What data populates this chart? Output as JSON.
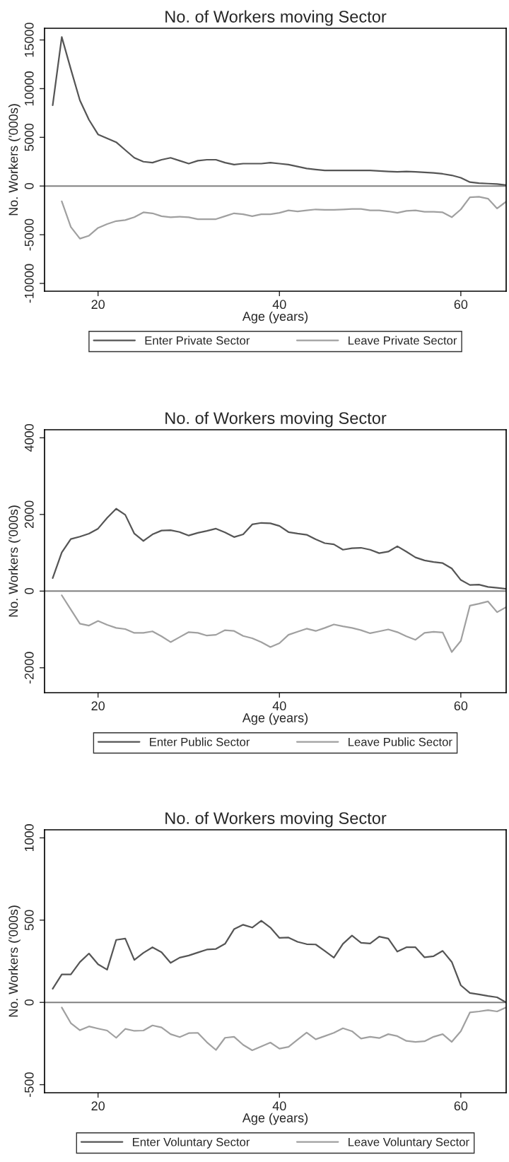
{
  "chart_data": [
    {
      "type": "line",
      "title": "No. of Workers moving Sector",
      "xlabel": "Age (years)",
      "ylabel": "No. Workers ('000s)",
      "xlim": [
        14.1,
        65
      ],
      "xticks": [
        20,
        40,
        60
      ],
      "ylim": [
        -10800,
        16200
      ],
      "yticks": [
        -10000,
        -5000,
        0,
        5000,
        10000,
        15000
      ],
      "grid": false,
      "legend": "bottom",
      "marker": "none",
      "line_style": "solid",
      "ref_lines": [
        {
          "axis": "y",
          "value": 0,
          "color": "#808080"
        }
      ],
      "series": [
        {
          "name": "Enter Private Sector",
          "color": "#555555",
          "x": [
            15,
            16,
            17,
            18,
            19,
            20,
            21,
            22,
            23,
            24,
            25,
            26,
            27,
            28,
            29,
            30,
            31,
            32,
            33,
            34,
            35,
            36,
            37,
            38,
            39,
            40,
            41,
            42,
            43,
            44,
            45,
            46,
            47,
            48,
            49,
            50,
            51,
            52,
            53,
            54,
            55,
            56,
            57,
            58,
            59,
            60,
            61,
            62,
            63,
            64,
            65
          ],
          "values": [
            8300,
            15300,
            12000,
            8800,
            6800,
            5300,
            4900,
            4500,
            3700,
            2900,
            2500,
            2400,
            2700,
            2900,
            2600,
            2300,
            2600,
            2700,
            2700,
            2400,
            2200,
            2300,
            2300,
            2300,
            2400,
            2300,
            2200,
            2000,
            1800,
            1700,
            1600,
            1600,
            1600,
            1600,
            1600,
            1600,
            1550,
            1500,
            1450,
            1500,
            1450,
            1400,
            1350,
            1250,
            1100,
            850,
            400,
            300,
            250,
            200,
            100
          ]
        },
        {
          "name": "Leave Private Sector",
          "color": "#a0a0a0",
          "x": [
            16,
            17,
            18,
            19,
            20,
            21,
            22,
            23,
            24,
            25,
            26,
            27,
            28,
            29,
            30,
            31,
            32,
            33,
            34,
            35,
            36,
            37,
            38,
            39,
            40,
            41,
            42,
            43,
            44,
            45,
            46,
            47,
            48,
            49,
            50,
            51,
            52,
            53,
            54,
            55,
            56,
            57,
            58,
            59,
            60,
            61,
            62,
            63,
            64,
            65
          ],
          "values": [
            -1570,
            -4200,
            -5400,
            -5100,
            -4300,
            -3900,
            -3600,
            -3500,
            -3200,
            -2700,
            -2800,
            -3100,
            -3200,
            -3150,
            -3200,
            -3400,
            -3400,
            -3400,
            -3100,
            -2800,
            -2900,
            -3100,
            -2900,
            -2900,
            -2750,
            -2500,
            -2600,
            -2500,
            -2400,
            -2450,
            -2450,
            -2400,
            -2350,
            -2350,
            -2500,
            -2500,
            -2600,
            -2750,
            -2550,
            -2500,
            -2650,
            -2650,
            -2700,
            -3200,
            -2400,
            -1150,
            -1100,
            -1300,
            -2300,
            -1600
          ]
        }
      ]
    },
    {
      "type": "line",
      "title": "No. of Workers moving Sector",
      "xlabel": "Age (years)",
      "ylabel": "No. Workers ('000s)",
      "xlim": [
        14.1,
        65
      ],
      "xticks": [
        20,
        40,
        60
      ],
      "ylim": [
        -2650,
        4210
      ],
      "yticks": [
        -2000,
        0,
        2000,
        4000
      ],
      "grid": false,
      "legend": "bottom",
      "marker": "none",
      "line_style": "solid",
      "ref_lines": [
        {
          "axis": "y",
          "value": 0,
          "color": "#808080"
        }
      ],
      "series": [
        {
          "name": "Enter Public Sector",
          "color": "#555555",
          "x": [
            15,
            16,
            17,
            18,
            19,
            20,
            21,
            22,
            23,
            24,
            25,
            26,
            27,
            28,
            29,
            30,
            31,
            32,
            33,
            34,
            35,
            36,
            37,
            38,
            39,
            40,
            41,
            42,
            43,
            44,
            45,
            46,
            47,
            48,
            49,
            50,
            51,
            52,
            53,
            54,
            55,
            56,
            57,
            58,
            59,
            60,
            61,
            62,
            63,
            64,
            65
          ],
          "values": [
            340,
            1010,
            1360,
            1420,
            1500,
            1630,
            1910,
            2150,
            1990,
            1500,
            1310,
            1480,
            1580,
            1590,
            1540,
            1450,
            1520,
            1570,
            1630,
            1530,
            1410,
            1480,
            1740,
            1780,
            1770,
            1700,
            1540,
            1500,
            1470,
            1350,
            1250,
            1220,
            1080,
            1120,
            1130,
            1080,
            990,
            1030,
            1170,
            1030,
            880,
            800,
            760,
            730,
            590,
            290,
            160,
            170,
            110,
            85,
            60
          ]
        },
        {
          "name": "Leave Public Sector",
          "color": "#a0a0a0",
          "x": [
            16,
            17,
            18,
            19,
            20,
            21,
            22,
            23,
            24,
            25,
            26,
            27,
            28,
            29,
            30,
            31,
            32,
            33,
            34,
            35,
            36,
            37,
            38,
            39,
            40,
            41,
            42,
            43,
            44,
            45,
            46,
            47,
            48,
            49,
            50,
            51,
            52,
            53,
            54,
            55,
            56,
            57,
            58,
            59,
            60,
            61,
            62,
            63,
            64,
            65
          ],
          "values": [
            -110,
            -480,
            -850,
            -900,
            -780,
            -880,
            -960,
            -990,
            -1090,
            -1090,
            -1050,
            -1180,
            -1330,
            -1200,
            -1070,
            -1090,
            -1160,
            -1140,
            -1020,
            -1040,
            -1170,
            -1230,
            -1330,
            -1460,
            -1360,
            -1140,
            -1060,
            -980,
            -1040,
            -960,
            -870,
            -920,
            -960,
            -1020,
            -1100,
            -1050,
            -1000,
            -1070,
            -1180,
            -1270,
            -1090,
            -1060,
            -1080,
            -1590,
            -1300,
            -380,
            -330,
            -270,
            -550,
            -420
          ]
        }
      ]
    },
    {
      "type": "line",
      "title": "No. of Workers moving Sector",
      "xlabel": "Age (years)",
      "ylabel": "No. Workers ('000s)",
      "xlim": [
        14.1,
        65
      ],
      "xticks": [
        20,
        40,
        60
      ],
      "ylim": [
        -549,
        1049
      ],
      "yticks": [
        -500,
        0,
        500,
        1000
      ],
      "grid": false,
      "legend": "bottom",
      "marker": "none",
      "line_style": "solid",
      "ref_lines": [
        {
          "axis": "y",
          "value": 0,
          "color": "#808080"
        }
      ],
      "series": [
        {
          "name": "Enter Voluntary Sector",
          "color": "#555555",
          "x": [
            15,
            16,
            17,
            18,
            19,
            20,
            21,
            22,
            23,
            24,
            25,
            26,
            27,
            28,
            29,
            30,
            31,
            32,
            33,
            34,
            35,
            36,
            37,
            38,
            39,
            40,
            41,
            42,
            43,
            44,
            45,
            46,
            47,
            48,
            49,
            50,
            51,
            52,
            53,
            54,
            55,
            56,
            57,
            58,
            59,
            60,
            61,
            62,
            63,
            64,
            65
          ],
          "values": [
            83,
            170,
            170,
            245,
            297,
            232,
            199,
            380,
            388,
            258,
            301,
            335,
            305,
            240,
            272,
            285,
            303,
            321,
            325,
            356,
            445,
            472,
            455,
            496,
            455,
            392,
            394,
            368,
            354,
            352,
            313,
            272,
            356,
            406,
            362,
            358,
            400,
            388,
            309,
            335,
            335,
            274,
            281,
            313,
            246,
            104,
            57,
            49,
            39,
            31,
            0
          ]
        },
        {
          "name": "Leave Voluntary Sector",
          "color": "#a0a0a0",
          "x": [
            16,
            17,
            18,
            19,
            20,
            21,
            22,
            23,
            24,
            25,
            26,
            27,
            28,
            29,
            30,
            31,
            32,
            33,
            34,
            35,
            36,
            37,
            38,
            39,
            40,
            41,
            42,
            43,
            44,
            45,
            46,
            47,
            48,
            49,
            50,
            51,
            52,
            53,
            54,
            55,
            56,
            57,
            58,
            59,
            60,
            61,
            62,
            63,
            64,
            65
          ],
          "values": [
            -31,
            -126,
            -169,
            -146,
            -159,
            -171,
            -215,
            -161,
            -173,
            -171,
            -140,
            -152,
            -193,
            -211,
            -187,
            -185,
            -242,
            -289,
            -215,
            -209,
            -258,
            -291,
            -268,
            -244,
            -281,
            -270,
            -226,
            -183,
            -224,
            -205,
            -185,
            -157,
            -175,
            -220,
            -209,
            -217,
            -193,
            -205,
            -234,
            -240,
            -236,
            -209,
            -193,
            -240,
            -175,
            -61,
            -55,
            -47,
            -55,
            -30
          ]
        }
      ]
    }
  ]
}
